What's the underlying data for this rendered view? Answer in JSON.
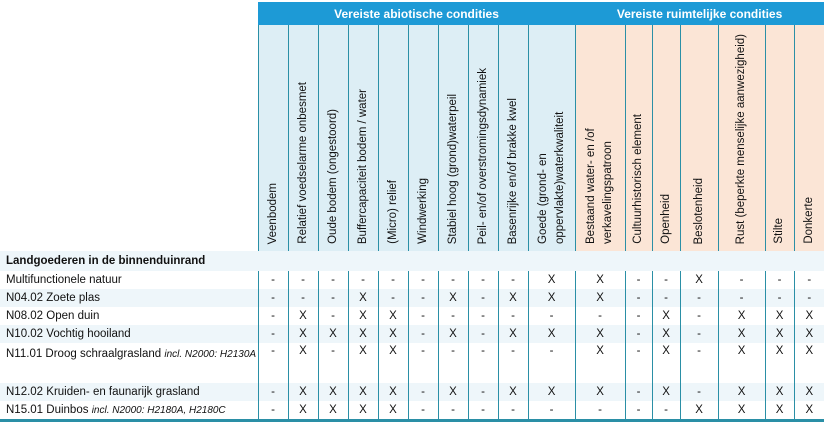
{
  "header": {
    "group_abiotic": "Vereiste abiotische condities",
    "group_spatial": "Vereiste ruimtelijke condities",
    "columns": [
      {
        "label": "Veenbodem",
        "group": "abio"
      },
      {
        "label": "Relatief voedselarme onbesmet",
        "group": "abio"
      },
      {
        "label": "Oude bodem (ongestoord)",
        "group": "abio"
      },
      {
        "label": "Buffercapaciteit bodem / water",
        "group": "abio"
      },
      {
        "label": "(Micro) relief",
        "group": "abio"
      },
      {
        "label": "Windwerking",
        "group": "abio"
      },
      {
        "label": "Stabiel hoog (grond)waterpeil",
        "group": "abio"
      },
      {
        "label": "Peil- en/of overstromingsdynamiek",
        "group": "abio"
      },
      {
        "label": "Basenrijke en/of brakke kwel",
        "group": "abio"
      },
      {
        "label": "Goede (grond- en oppervlakte)waterkwaliteit",
        "group": "abio"
      },
      {
        "label": "Bestaand water- en /of verkavelingspatroon",
        "group": "ruim"
      },
      {
        "label": "Cultuurhistorisch element",
        "group": "ruim"
      },
      {
        "label": "Openheid",
        "group": "ruim"
      },
      {
        "label": "Beslotenheid",
        "group": "ruim"
      },
      {
        "label": "Rust (beperkte menselijke aanwezigheid)",
        "group": "ruim"
      },
      {
        "label": "Stilte",
        "group": "ruim"
      },
      {
        "label": "Donkerte",
        "group": "ruim"
      }
    ]
  },
  "section_title": "Landgoederen in de binnenduinrand",
  "rows": [
    {
      "name": "Multifunctionele natuur",
      "note": "",
      "values": [
        "-",
        "-",
        "-",
        "-",
        "-",
        "-",
        "-",
        "-",
        "-",
        "X",
        "X",
        "-",
        "-",
        "X",
        "-",
        "-",
        "-"
      ]
    },
    {
      "name": "N04.02 Zoete plas",
      "note": "",
      "values": [
        "-",
        "-",
        "-",
        "X",
        "-",
        "-",
        "X",
        "-",
        "X",
        "X",
        "X",
        "-",
        "-",
        "-",
        "-",
        "-",
        "-"
      ]
    },
    {
      "name": "N08.02 Open duin",
      "note": "",
      "values": [
        "-",
        "X",
        "-",
        "X",
        "X",
        "-",
        "-",
        "-",
        "-",
        "-",
        "-",
        "-",
        "X",
        "-",
        "X",
        "X",
        "X"
      ]
    },
    {
      "name": "N10.02 Vochtig hooiland",
      "note": "",
      "values": [
        "-",
        "X",
        "X",
        "X",
        "X",
        "-",
        "X",
        "-",
        "X",
        "X",
        "X",
        "-",
        "X",
        "-",
        "X",
        "X",
        "X"
      ]
    },
    {
      "name": "N11.01 Droog schraalgrasland",
      "note": "incl. N2000: H2130A",
      "values": [
        "-",
        "X",
        "-",
        "X",
        "X",
        "-",
        "-",
        "-",
        "-",
        "-",
        "X",
        "-",
        "X",
        "-",
        "X",
        "X",
        "X"
      ]
    },
    {
      "name": "N12.02 Kruiden- en faunarijk grasland",
      "note": "",
      "values": [
        "-",
        "X",
        "X",
        "X",
        "X",
        "-",
        "X",
        "-",
        "X",
        "X",
        "X",
        "-",
        "X",
        "-",
        "X",
        "X",
        "X"
      ]
    },
    {
      "name": "N15.01 Duinbos",
      "note": "incl. N2000: H2180A, H2180C",
      "values": [
        "-",
        "X",
        "X",
        "X",
        "X",
        "-",
        "-",
        "-",
        "-",
        "-",
        "-",
        "-",
        "-",
        "X",
        "X",
        "X",
        "X"
      ]
    }
  ],
  "colors": {
    "banner": "#1d9ad6",
    "abiotic": "#ddeef5",
    "spatial": "#fbe5d6",
    "rule": "#2a8fa6"
  }
}
